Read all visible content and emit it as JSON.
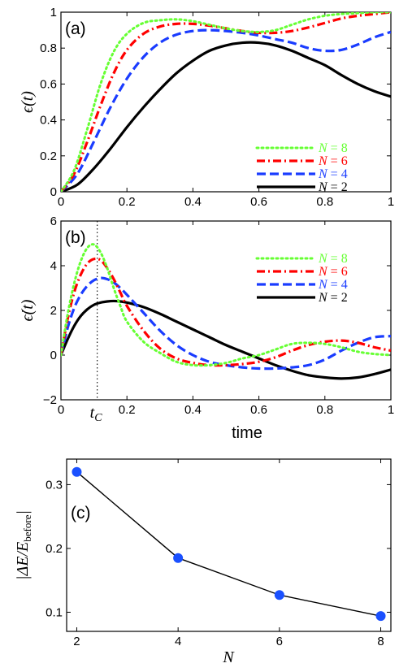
{
  "chart_data": [
    {
      "type": "line",
      "panel_label": "(a)",
      "ylabel": "ϵ(t)",
      "xlim": [
        0,
        1
      ],
      "ylim": [
        0,
        1
      ],
      "x_ticks": [
        0,
        0.2,
        0.4,
        0.6,
        0.8,
        1
      ],
      "x_tick_labels": [
        "0",
        "0.2",
        "0.4",
        "0.6",
        "0.8",
        "1"
      ],
      "y_ticks": [
        0,
        0.2,
        0.4,
        0.6,
        0.8,
        1
      ],
      "y_tick_labels": [
        "0",
        "0.2",
        "0.4",
        "0.6",
        "0.8",
        "1"
      ],
      "legend_position": "lower-right",
      "series": [
        {
          "name": "N = 8",
          "color": "#66ff33",
          "style": "dotted",
          "x": [
            0,
            0.04,
            0.08,
            0.12,
            0.16,
            0.2,
            0.25,
            0.3,
            0.35,
            0.4,
            0.45,
            0.5,
            0.55,
            0.6,
            0.65,
            0.7,
            0.75,
            0.8,
            0.85,
            0.9,
            0.95,
            1.0
          ],
          "y": [
            0,
            0.12,
            0.35,
            0.6,
            0.78,
            0.88,
            0.94,
            0.955,
            0.96,
            0.95,
            0.93,
            0.91,
            0.895,
            0.89,
            0.9,
            0.93,
            0.96,
            0.98,
            0.99,
            0.995,
            1.0,
            1.0
          ]
        },
        {
          "name": "N = 6",
          "color": "#ff0000",
          "style": "dash-dot",
          "x": [
            0,
            0.04,
            0.08,
            0.12,
            0.16,
            0.2,
            0.25,
            0.3,
            0.35,
            0.4,
            0.45,
            0.5,
            0.55,
            0.6,
            0.65,
            0.7,
            0.75,
            0.8,
            0.85,
            0.9,
            0.95,
            1.0
          ],
          "y": [
            0,
            0.1,
            0.28,
            0.48,
            0.66,
            0.79,
            0.88,
            0.92,
            0.935,
            0.935,
            0.925,
            0.91,
            0.895,
            0.885,
            0.885,
            0.895,
            0.915,
            0.94,
            0.965,
            0.98,
            0.99,
            1.0
          ]
        },
        {
          "name": "N = 4",
          "color": "#1a3cff",
          "style": "dashed",
          "x": [
            0,
            0.05,
            0.1,
            0.15,
            0.2,
            0.25,
            0.3,
            0.35,
            0.4,
            0.45,
            0.5,
            0.55,
            0.6,
            0.65,
            0.7,
            0.75,
            0.8,
            0.85,
            0.9,
            0.95,
            1.0
          ],
          "y": [
            0,
            0.1,
            0.28,
            0.47,
            0.63,
            0.75,
            0.83,
            0.875,
            0.895,
            0.9,
            0.895,
            0.885,
            0.87,
            0.85,
            0.83,
            0.8,
            0.785,
            0.79,
            0.82,
            0.86,
            0.89
          ]
        },
        {
          "name": "N = 2",
          "color": "#000000",
          "style": "solid",
          "x": [
            0,
            0.05,
            0.1,
            0.15,
            0.2,
            0.25,
            0.3,
            0.35,
            0.4,
            0.45,
            0.5,
            0.55,
            0.6,
            0.65,
            0.7,
            0.75,
            0.8,
            0.85,
            0.9,
            0.95,
            1.0
          ],
          "y": [
            0,
            0.04,
            0.13,
            0.24,
            0.36,
            0.47,
            0.57,
            0.66,
            0.73,
            0.785,
            0.815,
            0.83,
            0.83,
            0.815,
            0.785,
            0.745,
            0.705,
            0.65,
            0.6,
            0.56,
            0.53
          ]
        }
      ]
    },
    {
      "type": "line",
      "panel_label": "(b)",
      "ylabel": "ϵ̇(t)",
      "xlabel": "time",
      "xlim": [
        0,
        1
      ],
      "ylim": [
        -2,
        6
      ],
      "x_ticks": [
        0,
        0.2,
        0.4,
        0.6,
        0.8,
        1
      ],
      "x_tick_labels": [
        "0",
        "0.2",
        "0.4",
        "0.6",
        "0.8",
        "1"
      ],
      "y_ticks": [
        -2,
        0,
        2,
        4,
        6
      ],
      "y_tick_labels": [
        "−2",
        "0",
        "2",
        "4",
        "6"
      ],
      "annotation": {
        "label": "t",
        "subscript": "C",
        "x": 0.11,
        "style": "dotted vertical line"
      },
      "legend_position": "upper-right",
      "series": [
        {
          "name": "N = 8",
          "color": "#66ff33",
          "style": "dotted",
          "x": [
            0,
            0.02,
            0.04,
            0.06,
            0.08,
            0.1,
            0.12,
            0.14,
            0.16,
            0.18,
            0.2,
            0.25,
            0.3,
            0.35,
            0.4,
            0.45,
            0.5,
            0.55,
            0.6,
            0.65,
            0.7,
            0.75,
            0.8,
            0.85,
            0.9,
            0.95,
            1.0
          ],
          "y": [
            0,
            1.8,
            3.2,
            4.2,
            4.8,
            4.95,
            4.6,
            3.9,
            3.0,
            2.2,
            1.5,
            0.6,
            0.1,
            -0.3,
            -0.45,
            -0.45,
            -0.35,
            -0.15,
            0.0,
            0.25,
            0.5,
            0.55,
            0.5,
            0.35,
            0.15,
            0.05,
            0.0
          ]
        },
        {
          "name": "N = 6",
          "color": "#ff0000",
          "style": "dash-dot",
          "x": [
            0,
            0.02,
            0.04,
            0.06,
            0.08,
            0.1,
            0.12,
            0.14,
            0.16,
            0.18,
            0.2,
            0.25,
            0.3,
            0.35,
            0.4,
            0.45,
            0.5,
            0.55,
            0.6,
            0.65,
            0.7,
            0.75,
            0.8,
            0.85,
            0.9,
            0.95,
            1.0
          ],
          "y": [
            0,
            1.6,
            2.8,
            3.6,
            4.1,
            4.3,
            4.25,
            3.9,
            3.4,
            2.8,
            2.2,
            1.1,
            0.3,
            -0.15,
            -0.35,
            -0.45,
            -0.45,
            -0.4,
            -0.3,
            -0.1,
            0.2,
            0.45,
            0.6,
            0.65,
            0.55,
            0.35,
            0.2
          ]
        },
        {
          "name": "N = 4",
          "color": "#1a3cff",
          "style": "dashed",
          "x": [
            0,
            0.02,
            0.04,
            0.06,
            0.08,
            0.1,
            0.12,
            0.14,
            0.16,
            0.18,
            0.2,
            0.25,
            0.3,
            0.35,
            0.4,
            0.45,
            0.5,
            0.55,
            0.6,
            0.65,
            0.7,
            0.75,
            0.8,
            0.85,
            0.9,
            0.95,
            1.0
          ],
          "y": [
            0,
            1.2,
            2.1,
            2.7,
            3.1,
            3.35,
            3.45,
            3.4,
            3.25,
            3.0,
            2.7,
            1.9,
            1.1,
            0.45,
            0.0,
            -0.3,
            -0.45,
            -0.55,
            -0.6,
            -0.6,
            -0.55,
            -0.45,
            -0.2,
            0.2,
            0.55,
            0.8,
            0.85
          ]
        },
        {
          "name": "N = 2",
          "color": "#000000",
          "style": "solid",
          "x": [
            0,
            0.02,
            0.04,
            0.06,
            0.08,
            0.1,
            0.12,
            0.14,
            0.16,
            0.18,
            0.2,
            0.25,
            0.3,
            0.35,
            0.4,
            0.45,
            0.5,
            0.55,
            0.6,
            0.65,
            0.7,
            0.75,
            0.8,
            0.85,
            0.9,
            0.95,
            1.0
          ],
          "y": [
            0,
            0.7,
            1.3,
            1.75,
            2.05,
            2.25,
            2.35,
            2.4,
            2.42,
            2.4,
            2.35,
            2.15,
            1.85,
            1.5,
            1.15,
            0.8,
            0.45,
            0.15,
            -0.15,
            -0.45,
            -0.7,
            -0.9,
            -1.0,
            -1.05,
            -1.0,
            -0.85,
            -0.65
          ]
        }
      ]
    },
    {
      "type": "scatter",
      "panel_label": "(c)",
      "ylabel": "|ΔE/E_before|",
      "xlabel": "N",
      "xlim": [
        1.8,
        8.2
      ],
      "ylim": [
        0.07,
        0.34
      ],
      "x_ticks": [
        2,
        4,
        6,
        8
      ],
      "x_tick_labels": [
        "2",
        "4",
        "6",
        "8"
      ],
      "y_ticks": [
        0.1,
        0.2,
        0.3
      ],
      "y_tick_labels": [
        "0.1",
        "0.2",
        "0.3"
      ],
      "connected": true,
      "marker_color": "#1a50ff",
      "line_color": "#000000",
      "x": [
        2,
        4,
        6,
        8
      ],
      "y": [
        0.32,
        0.185,
        0.127,
        0.094
      ]
    }
  ]
}
